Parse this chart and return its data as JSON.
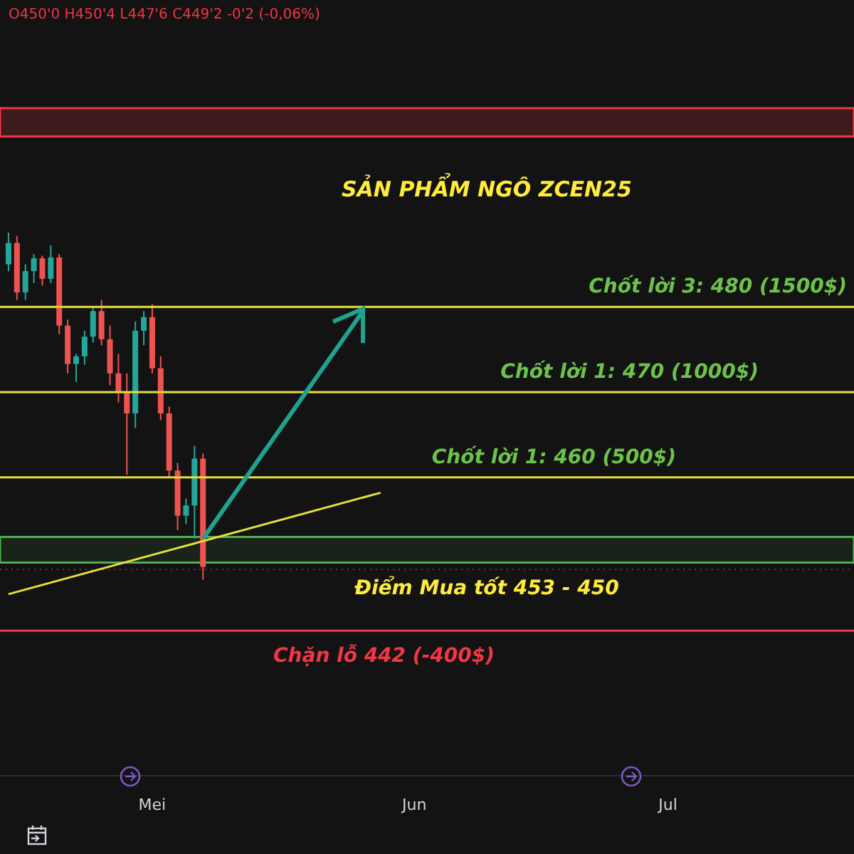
{
  "chart_data": {
    "type": "candlestick",
    "title": "SẢN PHẨM NGÔ ZCEN25",
    "annotations": [
      "O450'0 H450'4 L447'6 C449'2 -0'2 (-0,06%)"
    ],
    "x": [
      "--04-14",
      "--04-15",
      "--04-16",
      "--04-17",
      "--04-18",
      "--04-19",
      "--04-20",
      "--04-21",
      "--04-22",
      "--04-23",
      "--04-24",
      "--04-25",
      "--04-26",
      "--04-27",
      "--04-28",
      "--04-29",
      "--04-30",
      "--05-01",
      "--05-02",
      "--05-03",
      "--05-04",
      "--05-05",
      "--05-06",
      "--05-07"
    ],
    "ohlc": [
      [
        485.0,
        488.7,
        484.2,
        487.5
      ],
      [
        487.5,
        488.3,
        480.8,
        481.7
      ],
      [
        481.7,
        485.0,
        480.8,
        484.2
      ],
      [
        484.2,
        486.2,
        482.8,
        485.7
      ],
      [
        485.7,
        486.0,
        482.5,
        483.3
      ],
      [
        483.3,
        487.2,
        482.8,
        485.8
      ],
      [
        485.8,
        486.2,
        476.8,
        477.8
      ],
      [
        477.8,
        478.5,
        472.2,
        473.3
      ],
      [
        473.3,
        474.5,
        471.2,
        474.2
      ],
      [
        474.2,
        477.2,
        473.2,
        476.5
      ],
      [
        476.5,
        480.0,
        475.8,
        479.5
      ],
      [
        479.5,
        480.8,
        475.5,
        476.2
      ],
      [
        476.2,
        477.8,
        470.8,
        472.2
      ],
      [
        472.2,
        474.5,
        468.8,
        470.0
      ],
      [
        470.0,
        472.2,
        460.3,
        467.5
      ],
      [
        467.5,
        478.3,
        465.8,
        477.2
      ],
      [
        477.2,
        479.5,
        475.5,
        478.8
      ],
      [
        478.8,
        480.3,
        472.2,
        472.8
      ],
      [
        472.8,
        474.2,
        466.7,
        467.5
      ],
      [
        467.5,
        468.3,
        460.0,
        460.8
      ],
      [
        460.8,
        461.7,
        453.8,
        455.5
      ],
      [
        455.5,
        457.5,
        454.5,
        456.7
      ],
      [
        456.7,
        463.7,
        452.8,
        462.2
      ],
      [
        462.2,
        462.8,
        448.0,
        449.5
      ]
    ],
    "colors": [
      "#26a69a",
      "#ef5350",
      "#26a69a",
      "#26a69a",
      "#ef5350",
      "#26a69a",
      "#ef5350",
      "#ef5350",
      "#26a69a",
      "#26a69a",
      "#26a69a",
      "#ef5350",
      "#ef5350",
      "#ef5350",
      "#ef5350",
      "#26a69a",
      "#26a69a",
      "#ef5350",
      "#ef5350",
      "#ef5350",
      "#ef5350",
      "#26a69a",
      "#26a69a",
      "#ef5350"
    ],
    "series": [
      {
        "type": "line",
        "x": [
          "--04-14",
          "--05-28"
        ],
        "values": [
          446.3,
          458.2
        ],
        "color": "#e6df3c"
      }
    ],
    "xlim": [
      "--04-13",
      "--07-23"
    ],
    "xticks": [
      {
        "value": "--05-01",
        "label": "Mei"
      },
      {
        "value": "--06-01",
        "label": "Jun"
      },
      {
        "value": "--07-01",
        "label": "Jul"
      }
    ],
    "ylim": [
      425,
      516
    ],
    "tick_labels": "x",
    "ref_lines": [
      {
        "axis": "y",
        "value": 480,
        "label": "Chốt lời 3: 480 (1500$)",
        "color": "#e6df3c"
      },
      {
        "axis": "y",
        "value": 470,
        "label": "Chốt lời 1: 470 (1000$)",
        "color": "#e6df3c"
      },
      {
        "axis": "y",
        "value": 460,
        "label": "Chốt lời 1: 460 (500$)",
        "color": "#e6df3c"
      },
      {
        "axis": "y",
        "value": 442,
        "label": "Chặn lỗ 442 (-400$)",
        "color": "#f23645"
      },
      {
        "axis": "y",
        "value": 449.2,
        "label": null,
        "color": "#f23645",
        "line_style": "dotted"
      }
    ],
    "bands": [
      {
        "axis": "y",
        "from": 500,
        "to": 503.3,
        "label": null,
        "color": "#f23645"
      },
      {
        "axis": "y",
        "from": 450,
        "to": 453,
        "label": "Điểm Mua tốt 453 - 450",
        "color": "#4caf50"
      }
    ]
  }
}
